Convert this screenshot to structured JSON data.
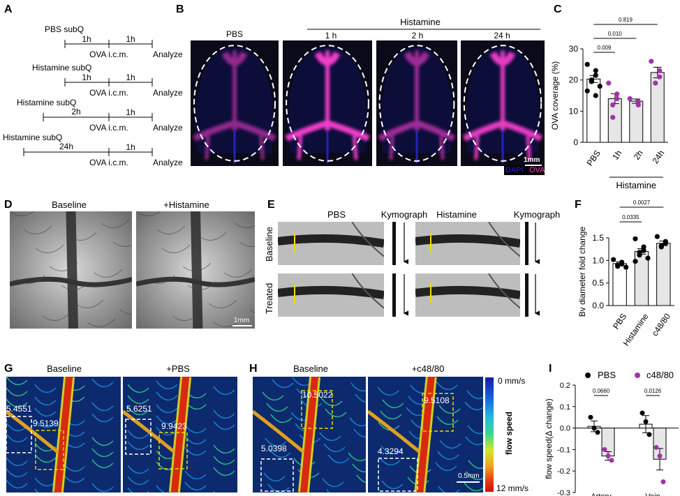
{
  "panels": {
    "A": {
      "label": "A",
      "rows": [
        {
          "title": "PBS subQ",
          "pre_interval": "1h",
          "post_interval": "1h",
          "injection": "OVA i.c.m.",
          "end": "Analyze"
        },
        {
          "title": "Histamine subQ",
          "pre_interval": "1h",
          "post_interval": "1h",
          "injection": "OVA i.c.m.",
          "end": "Analyze"
        },
        {
          "title": "Histamine subQ",
          "pre_interval": "2h",
          "post_interval": "1h",
          "injection": "OVA i.c.m.",
          "end": "Analyze"
        },
        {
          "title": "Histamine subQ",
          "pre_interval": "24h",
          "post_interval": "1h",
          "injection": "OVA i.c.m.",
          "end": "Analyze"
        }
      ]
    },
    "B": {
      "label": "B",
      "group_label": "Histamine",
      "images": [
        "PBS",
        "1 h",
        "2 h",
        "24 h"
      ],
      "scale_bar": "1mm",
      "legend_dapi": "DAPI",
      "legend_ova": "OVA",
      "colors": {
        "dapi": "#2a2ad8",
        "ova": "#ff3fd2"
      }
    },
    "C": {
      "label": "C",
      "pvalues": [
        "0.009",
        "0.010",
        "0.819"
      ],
      "group_label": "Histamine"
    },
    "D": {
      "label": "D",
      "images": [
        "Baseline",
        "+Histamine"
      ],
      "scale_bar": "1mm"
    },
    "E": {
      "label": "E",
      "columns": [
        "PBS",
        "Kymograph",
        "Histamine",
        "Kymograph"
      ],
      "rows": [
        "Baseline",
        "Treated"
      ]
    },
    "F": {
      "label": "F",
      "pvalues": [
        "0.0335",
        "0.0027"
      ]
    },
    "G": {
      "label": "G",
      "images": [
        "Baseline",
        "+PBS"
      ],
      "values": [
        "5.4551",
        "9.5139",
        "5.6251",
        "9.9423"
      ]
    },
    "H": {
      "label": "H",
      "images": [
        "Baseline",
        "+c48/80"
      ],
      "values": [
        "10.5022",
        "5.0398",
        "9.5108",
        "4.3294"
      ],
      "scale_bar": "0.5mm",
      "colorbar_top": "0 mm/s",
      "colorbar_bottom": "12 mm/s",
      "colorbar_label": "flow speed"
    },
    "I": {
      "label": "I",
      "pvalues": [
        "0.0660",
        "0.0126"
      ]
    }
  },
  "chart_data": [
    {
      "id": "C",
      "type": "bar",
      "categories": [
        "PBS",
        "1h",
        "2h",
        "24h"
      ],
      "values": [
        20.3,
        14.0,
        13.2,
        22.4
      ],
      "errors": [
        1.1,
        1.6,
        0.7,
        1.7
      ],
      "points": [
        [
          25,
          23,
          21.5,
          20,
          19.5,
          18,
          16.5,
          15
        ],
        [
          19,
          15.5,
          14,
          12,
          8
        ],
        [
          14,
          13,
          12
        ],
        [
          26,
          23,
          21,
          19
        ]
      ],
      "point_colors": [
        "#000000",
        "#a033a8",
        "#a033a8",
        "#a033a8"
      ],
      "ylabel": "OVA coverage (%)",
      "ylim": [
        0,
        30
      ],
      "yticks": [
        0,
        10,
        20,
        30
      ]
    },
    {
      "id": "F",
      "type": "bar",
      "categories": [
        "PBS",
        "Histamine",
        "c48/80"
      ],
      "values": [
        0.93,
        1.2,
        1.38
      ],
      "errors": [
        0.04,
        0.06,
        0.05
      ],
      "points": [
        [
          1.02,
          0.96,
          0.92,
          0.9,
          0.87,
          0.85
        ],
        [
          1.48,
          1.3,
          1.22,
          1.18,
          1.12,
          1.05,
          0.98
        ],
        [
          1.53,
          1.42,
          1.38,
          1.33,
          1.3
        ]
      ],
      "point_colors": [
        "#000000",
        "#000000",
        "#000000"
      ],
      "ylabel": "Bv diameter fold change",
      "ylim": [
        0,
        1.5
      ],
      "yticks": [
        0,
        0.5,
        1.0,
        1.5
      ]
    },
    {
      "id": "I",
      "type": "bar",
      "categories": [
        "Artery",
        "Vein"
      ],
      "series": [
        {
          "name": "PBS",
          "values": [
            0.008,
            0.018
          ],
          "errors": [
            0.025,
            0.04
          ],
          "points": [
            [
              0.05,
              0.0,
              -0.02
            ],
            [
              0.07,
              0.03,
              -0.03
            ]
          ],
          "color": "#000000"
        },
        {
          "name": "c48/80",
          "values": [
            -0.13,
            -0.145
          ],
          "errors": [
            0.02,
            0.05
          ],
          "points": [
            [
              -0.1,
              -0.13,
              -0.15
            ],
            [
              -0.09,
              -0.13,
              -0.25
            ]
          ],
          "color": "#a033a8"
        }
      ],
      "ylabel": "flow speed(Δ change)",
      "ylim": [
        -0.3,
        0.2
      ],
      "yticks": [
        -0.3,
        -0.2,
        -0.1,
        0.0,
        0.1,
        0.2
      ]
    }
  ]
}
